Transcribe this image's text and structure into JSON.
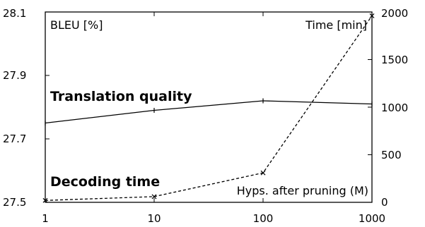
{
  "chart_data": {
    "type": "line",
    "x_scale": "log",
    "x": [
      1,
      10,
      100,
      1000
    ],
    "xtick_labels": [
      "1",
      "10",
      "100",
      "1000"
    ],
    "xlabel": "Hyps. after pruning (M)",
    "ylabel_left": "BLEU [%]",
    "ylabel_right": "Time [min]",
    "ylim_left": [
      27.5,
      28.1
    ],
    "ylim_right": [
      0,
      2000
    ],
    "yticks_left": [
      "27.5",
      "27.7",
      "27.9",
      "28.1"
    ],
    "yticks_right": [
      "0",
      "500",
      "1000",
      "1500",
      "2000"
    ],
    "grid": false,
    "series": [
      {
        "axis": "left",
        "style": "solid",
        "marker": "plus",
        "annotation": "Translation quality",
        "values": [
          27.75,
          27.79,
          27.82,
          27.81
        ]
      },
      {
        "axis": "right",
        "style": "dashed",
        "marker": "x",
        "annotation": "Decoding time",
        "values": [
          20,
          60,
          310,
          1960
        ]
      }
    ]
  }
}
